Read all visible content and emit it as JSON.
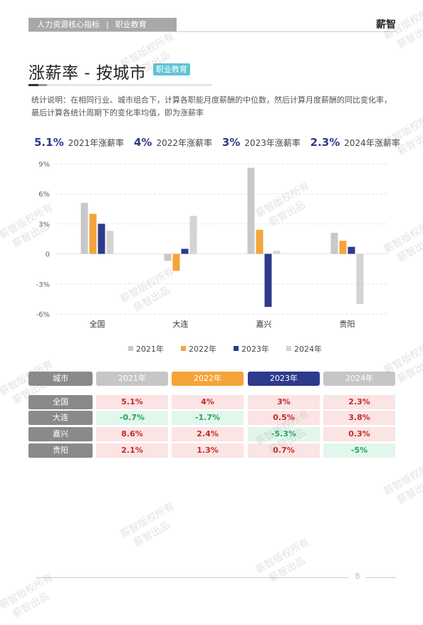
{
  "header": {
    "section": "人力资源核心指标",
    "separator": "|",
    "category": "职业教育",
    "brand": "薪智"
  },
  "page": {
    "title": "涨薪率 - 按城市",
    "tag": "职业教育",
    "description": "统计说明：在相同行业、城市组合下，计算各职能月度薪酬的中位数，然后计算月度薪酬的同比变化率，最后计算各统计周期下的变化率均值，即为涨薪率",
    "page_number": "8"
  },
  "summary": [
    {
      "value": "5.1%",
      "label": "2021年涨薪率"
    },
    {
      "value": "4%",
      "label": "2022年涨薪率"
    },
    {
      "value": "3%",
      "label": "2023年涨薪率"
    },
    {
      "value": "2.3%",
      "label": "2024年涨薪率"
    }
  ],
  "colors": {
    "2021": "#c8c8c8",
    "2022": "#f5a43a",
    "2023": "#2e3a8c",
    "2024": "#d4d4d4",
    "positive_text": "#c62828",
    "negative_text": "#1fa463"
  },
  "chart_data": {
    "type": "bar",
    "categories": [
      "全国",
      "大连",
      "嘉兴",
      "贵阳"
    ],
    "series": [
      {
        "name": "2021年",
        "values": [
          5.1,
          -0.7,
          8.6,
          2.1
        ]
      },
      {
        "name": "2022年",
        "values": [
          4.0,
          -1.7,
          2.4,
          1.3
        ]
      },
      {
        "name": "2023年",
        "values": [
          3.0,
          0.5,
          -5.3,
          0.7
        ]
      },
      {
        "name": "2024年",
        "values": [
          2.3,
          3.8,
          0.3,
          -5.0
        ]
      }
    ],
    "yticks": [
      "9%",
      "6%",
      "3%",
      "0",
      "-3%",
      "-6%"
    ],
    "ylim": [
      -6,
      9
    ],
    "grid": true,
    "legend": "bottom"
  },
  "table": {
    "corner": "城市",
    "headers": [
      "2021年",
      "2022年",
      "2023年",
      "2024年"
    ],
    "rows": [
      {
        "city": "全国",
        "values": [
          "5.1%",
          "4%",
          "3%",
          "2.3%"
        ]
      },
      {
        "city": "大连",
        "values": [
          "-0.7%",
          "-1.7%",
          "0.5%",
          "3.8%"
        ]
      },
      {
        "city": "嘉兴",
        "values": [
          "8.6%",
          "2.4%",
          "-5.3%",
          "0.3%"
        ]
      },
      {
        "city": "贵阳",
        "values": [
          "2.1%",
          "1.3%",
          "0.7%",
          "-5%"
        ]
      }
    ]
  },
  "watermark": {
    "line1": "薪智版权所有",
    "line2": "薪智出品"
  }
}
